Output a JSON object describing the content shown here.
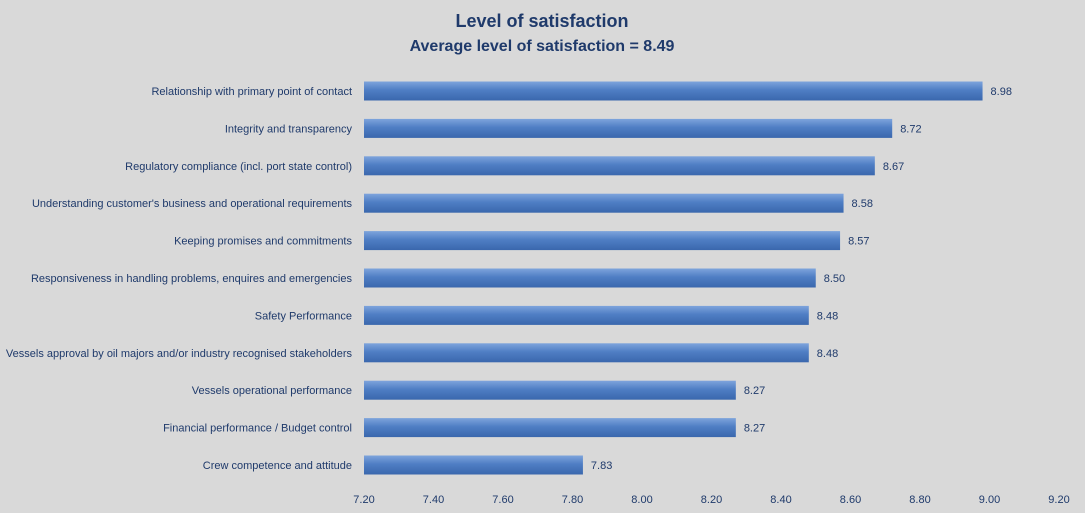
{
  "chart_data": {
    "type": "bar",
    "orientation": "horizontal",
    "title": "Level of satisfaction",
    "subtitle": "Average level of satisfaction = 8.49",
    "categories": [
      "Relationship with primary point of contact",
      "Integrity and transparency",
      "Regulatory compliance (incl. port state control)",
      "Understanding customer's business and operational requirements",
      "Keeping promises and commitments",
      "Responsiveness in handling problems, enquires and emergencies",
      "Safety Performance",
      "Vessels approval by oil majors and/or industry recognised stakeholders",
      "Vessels operational performance",
      "Financial performance / Budget control",
      "Crew competence and attitude"
    ],
    "values": [
      8.98,
      8.72,
      8.67,
      8.58,
      8.57,
      8.5,
      8.48,
      8.48,
      8.27,
      8.27,
      7.83
    ],
    "value_labels": [
      "8.98",
      "8.72",
      "8.67",
      "8.58",
      "8.57",
      "8.50",
      "8.48",
      "8.48",
      "8.27",
      "8.27",
      "7.83"
    ],
    "xlim": [
      7.2,
      9.2
    ],
    "x_ticks": [
      "7.20",
      "7.40",
      "7.60",
      "7.80",
      "8.00",
      "8.20",
      "8.40",
      "8.60",
      "8.80",
      "9.00",
      "9.20"
    ],
    "xlabel": "",
    "ylabel": "",
    "grid": false,
    "legend": "none",
    "colors": {
      "background": "#d9d9d9",
      "bar": "#4f7ec4",
      "bar_dark": "#3a67ad",
      "bar_light": "#7ea4dc",
      "text": "#1f3a6b"
    }
  }
}
